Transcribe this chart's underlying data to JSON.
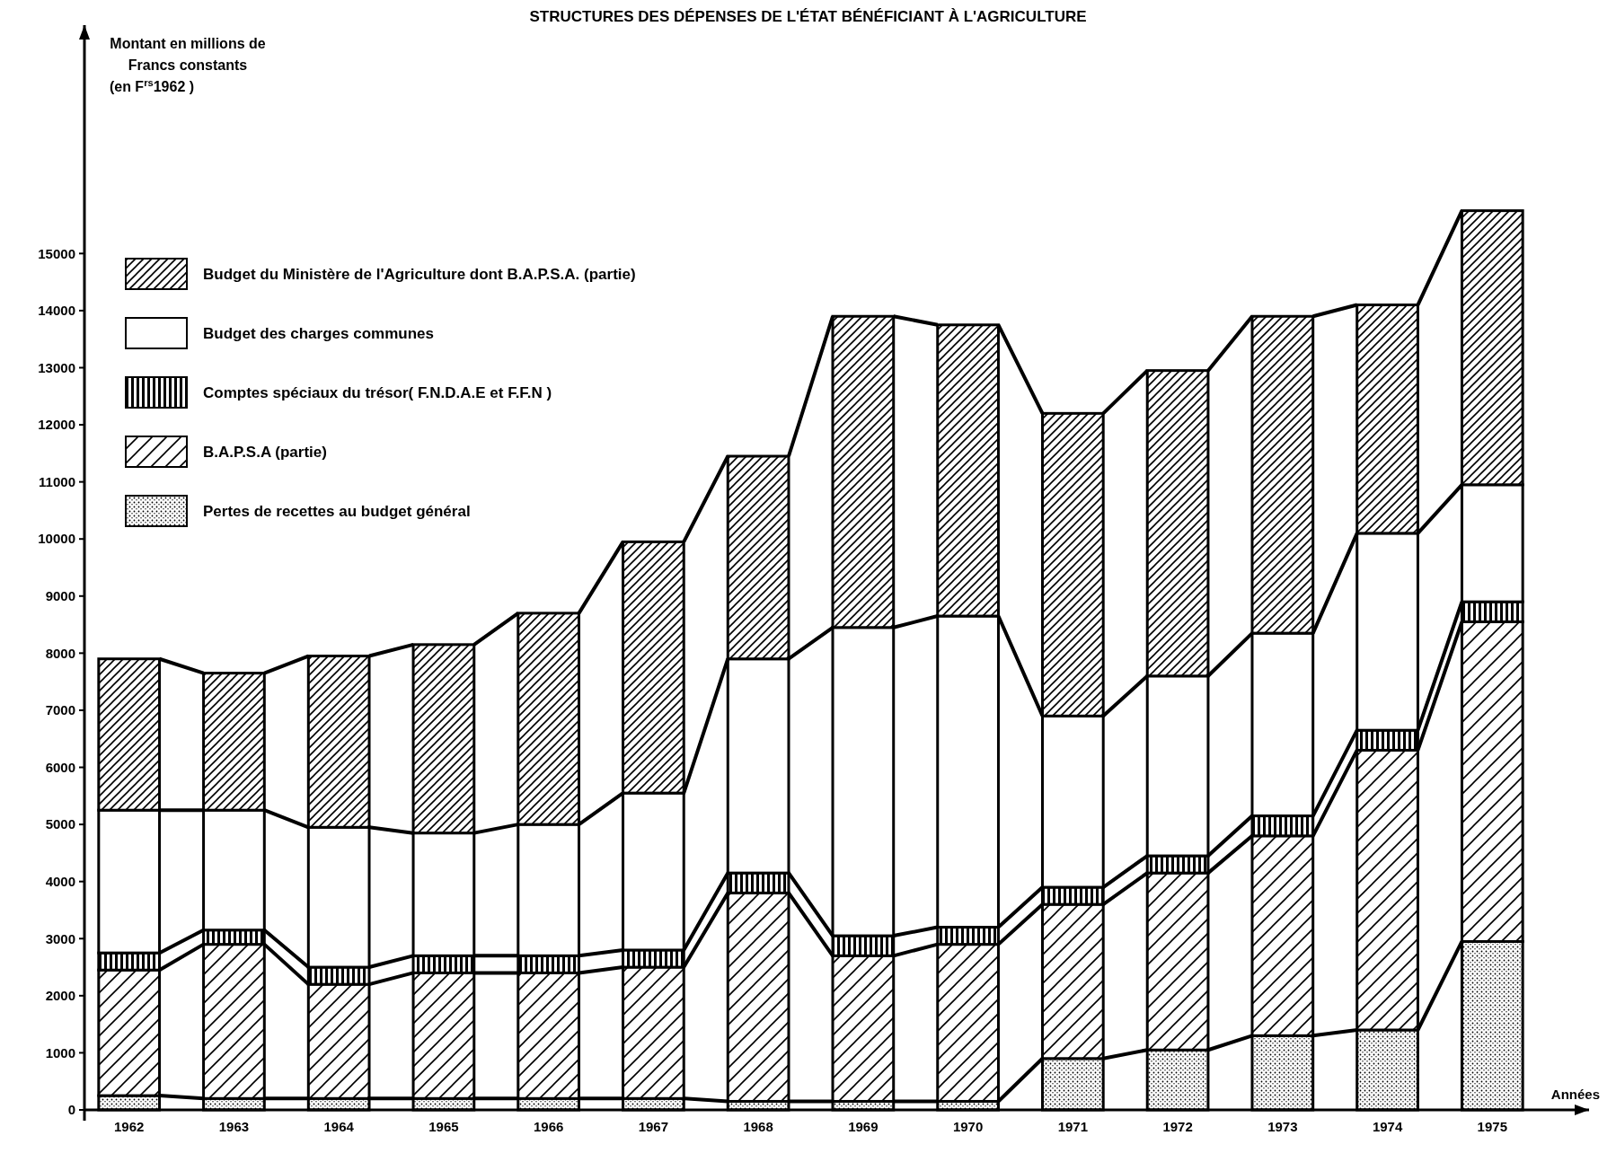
{
  "chart_data": {
    "type": "bar",
    "stacked": true,
    "title": "STRUCTURES DES DÉPENSES DE L'ÉTAT BÉNÉFICIANT À L'AGRICULTURE",
    "xlabel": "Années",
    "ylabel": "Montant en millions de Francs constants (en F$^{rs}$1962 )",
    "categories": [
      "1962",
      "1963",
      "1964",
      "1965",
      "1966",
      "1967",
      "1968",
      "1969",
      "1970",
      "1971",
      "1972",
      "1973",
      "1974",
      "1975"
    ],
    "series": [
      {
        "name": "Pertes de recettes au budget général",
        "color": "#000000",
        "values": [
          250,
          200,
          200,
          200,
          200,
          200,
          150,
          150,
          150,
          900,
          1050,
          1300,
          1400,
          2950
        ]
      },
      {
        "name": "B.A.P.S.A (partie)",
        "color": "#000000",
        "values": [
          2200,
          2700,
          2000,
          2200,
          2200,
          2300,
          3650,
          2550,
          2750,
          2700,
          3100,
          3500,
          4900,
          5600
        ]
      },
      {
        "name": "Comptes spéciaux du trésor( F.N.D.A.E et F.F.N )",
        "color": "#000000",
        "values": [
          300,
          250,
          300,
          300,
          300,
          300,
          350,
          350,
          300,
          300,
          300,
          350,
          350,
          350
        ]
      },
      {
        "name": "Budget des charges communes",
        "color": "#000000",
        "values": [
          2500,
          2100,
          2450,
          2150,
          2300,
          2750,
          3750,
          5400,
          5450,
          3000,
          3150,
          3200,
          3450,
          2050
        ]
      },
      {
        "name": "Budget du Ministère de l'Agriculture dont B.A.P.S.A. (partie)",
        "color": "#000000",
        "values": [
          2650,
          2400,
          3000,
          3300,
          3700,
          4400,
          3550,
          5450,
          5100,
          5300,
          5350,
          5550,
          4000,
          4800
        ]
      }
    ],
    "ylim": [
      0,
      19000
    ],
    "yticks": [
      0,
      1000,
      2000,
      3000,
      4000,
      5000,
      6000,
      7000,
      8000,
      9000,
      10000,
      11000,
      12000,
      13000,
      14000,
      15000
    ],
    "legend": "top left"
  }
}
